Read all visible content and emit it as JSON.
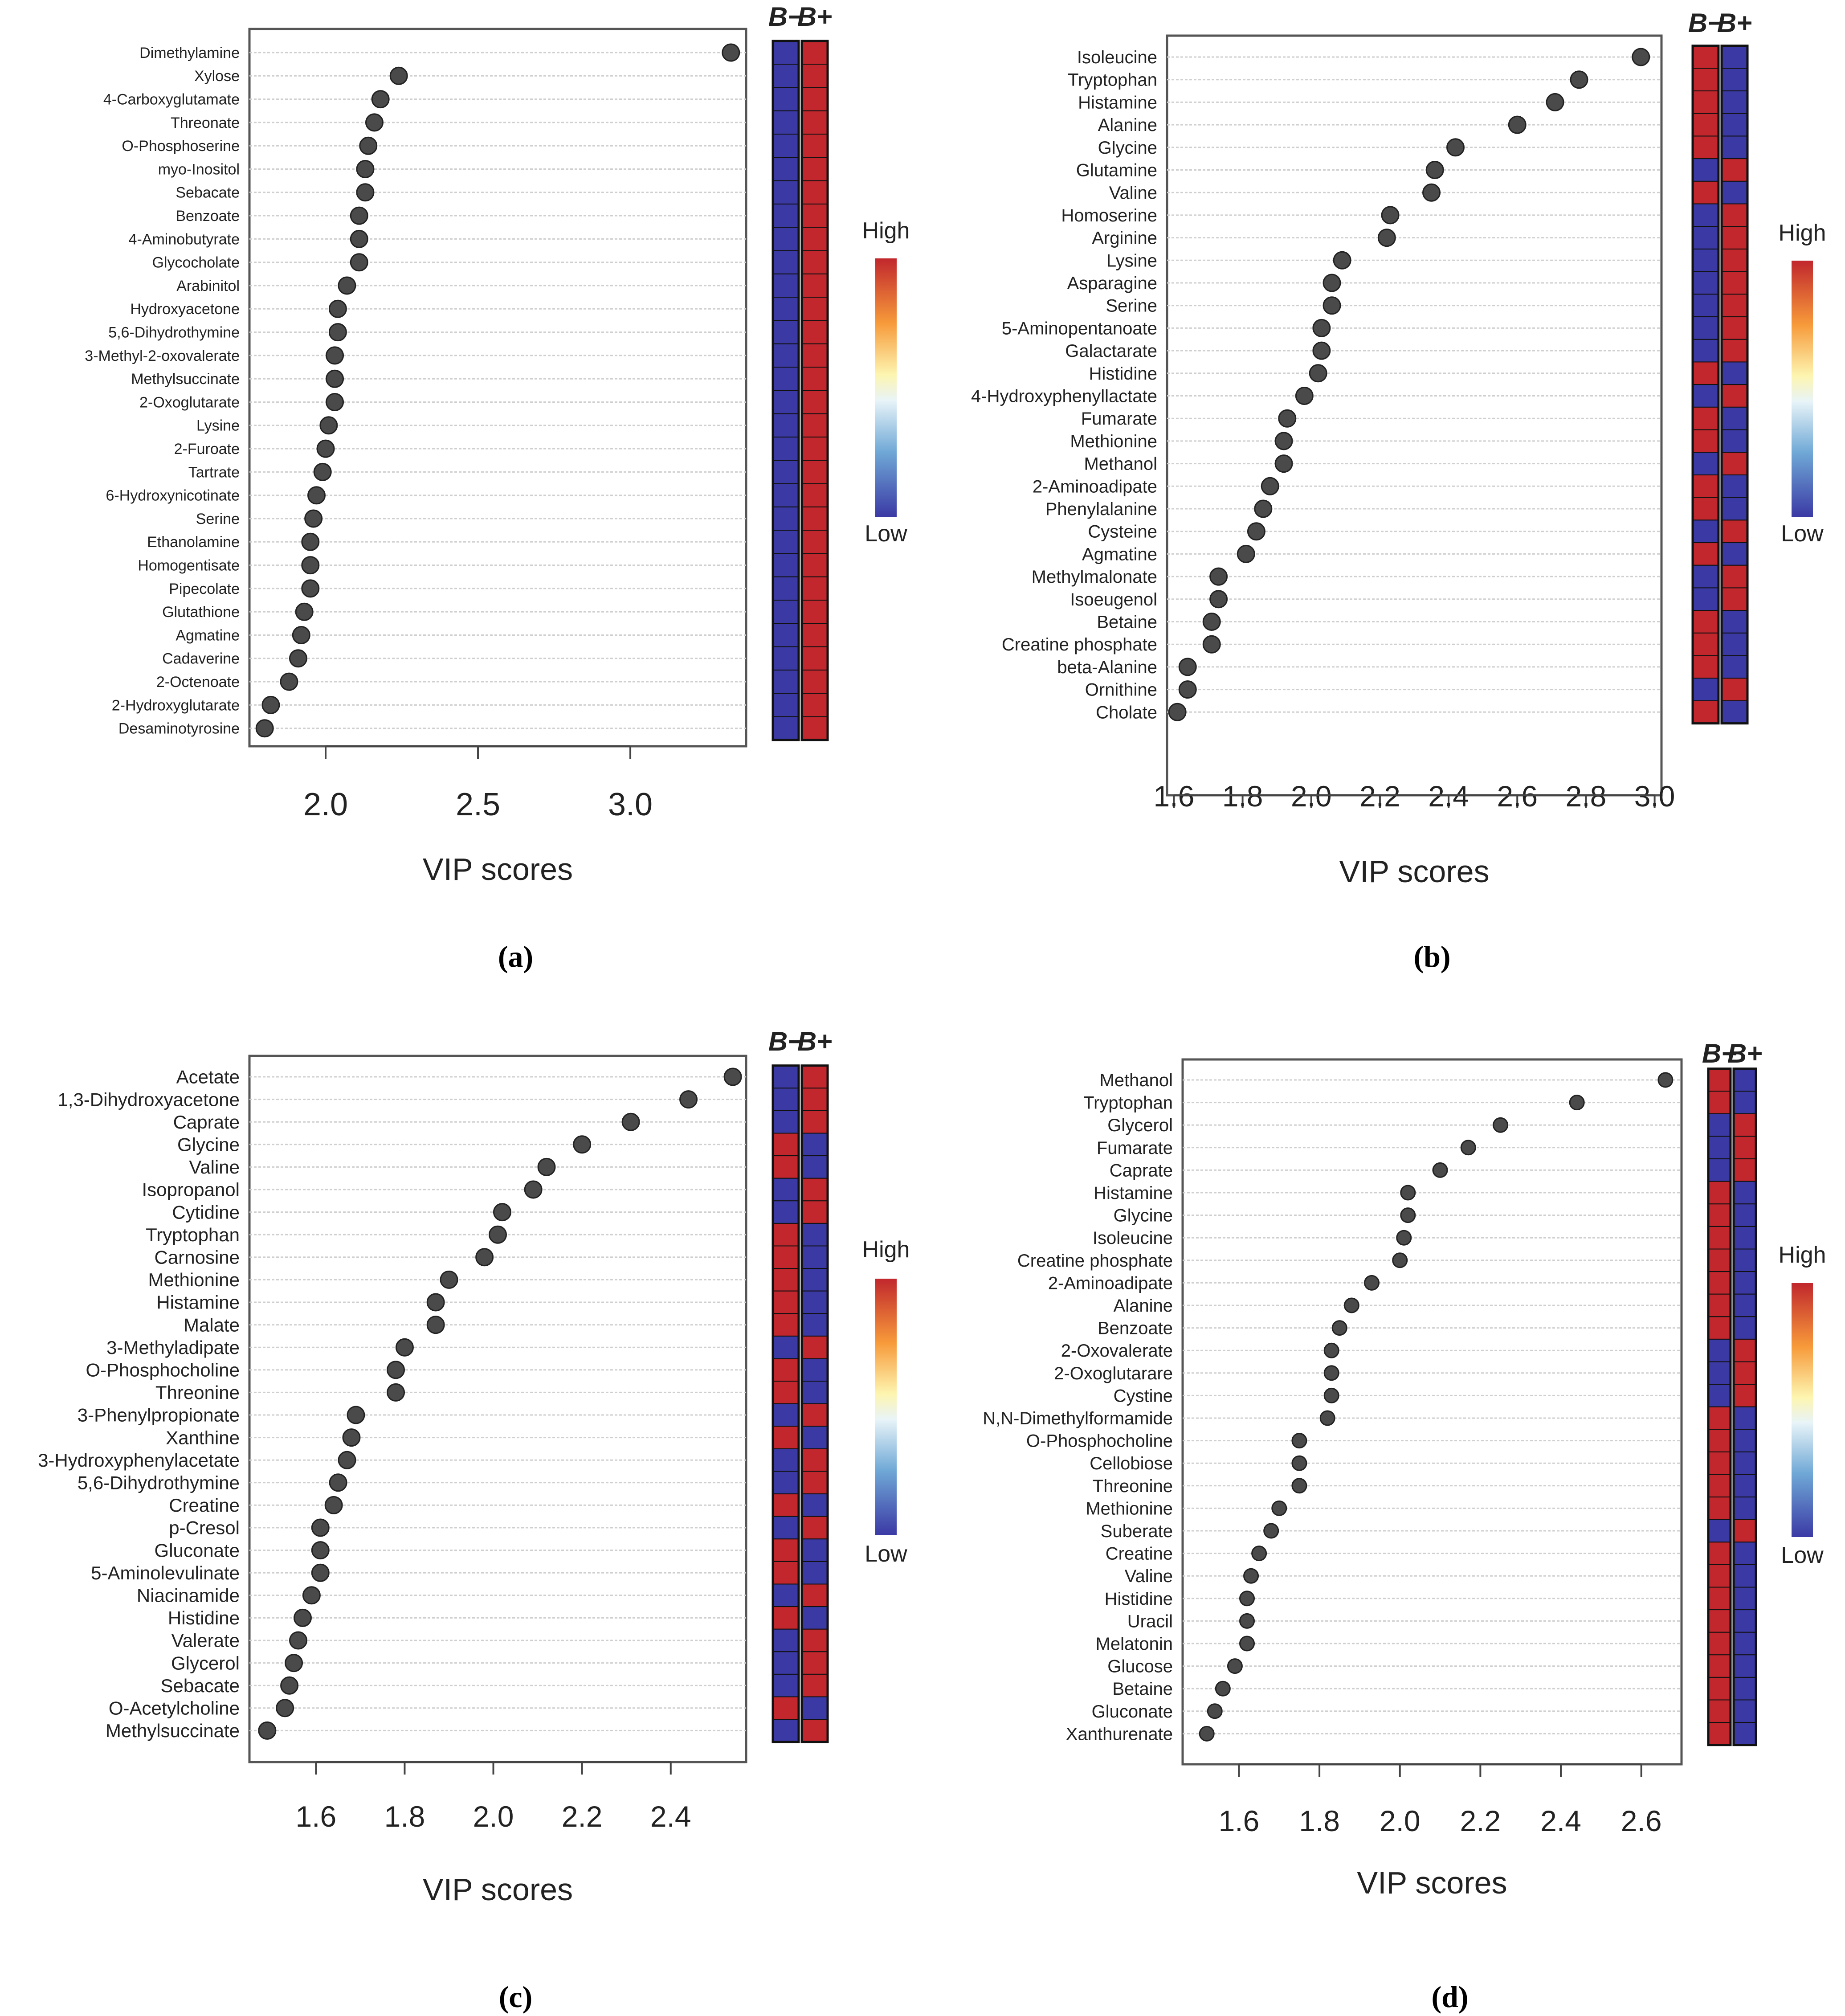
{
  "figure": {
    "legend": {
      "high": "High",
      "low": "Low"
    },
    "group_labels": [
      "B−",
      "B+"
    ],
    "colors": {
      "high": "#c1272d",
      "low": "#3b3aa5",
      "dot": "#4a4a4a"
    }
  },
  "chart_data": [
    {
      "type": "scatter",
      "panel": "(a)",
      "xlabel": "VIP scores",
      "xlim": [
        1.75,
        3.38
      ],
      "xticks": [
        2.0,
        2.5,
        3.0
      ],
      "tick_labels": [
        "2.0",
        "2.5",
        "3.0"
      ],
      "metabolites": [
        "Dimethylamine",
        "Xylose",
        "4-Carboxyglutamate",
        "Threonate",
        "O-Phosphoserine",
        "myo-Inositol",
        "Sebacate",
        "Benzoate",
        "4-Aminobutyrate",
        "Glycocholate",
        "Arabinitol",
        "Hydroxyacetone",
        "5,6-Dihydrothymine",
        "3-Methyl-2-oxovalerate",
        "Methylsuccinate",
        "2-Oxoglutarate",
        "Lysine",
        "2-Furoate",
        "Tartrate",
        "6-Hydroxynicotinate",
        "Serine",
        "Ethanolamine",
        "Homogentisate",
        "Pipecolate",
        "Glutathione",
        "Agmatine",
        "Cadaverine",
        "2-Octenoate",
        "2-Hydroxyglutarate",
        "Desaminotyrosine"
      ],
      "vip": [
        3.33,
        2.24,
        2.18,
        2.16,
        2.14,
        2.13,
        2.13,
        2.11,
        2.11,
        2.11,
        2.07,
        2.04,
        2.04,
        2.03,
        2.03,
        2.03,
        2.01,
        2.0,
        1.99,
        1.97,
        1.96,
        1.95,
        1.95,
        1.95,
        1.93,
        1.92,
        1.91,
        1.88,
        1.82,
        1.8
      ],
      "B_minus": [
        "low",
        "low",
        "low",
        "low",
        "low",
        "low",
        "low",
        "low",
        "low",
        "low",
        "low",
        "low",
        "low",
        "low",
        "low",
        "low",
        "low",
        "low",
        "low",
        "low",
        "low",
        "low",
        "low",
        "low",
        "low",
        "low",
        "low",
        "low",
        "low",
        "low"
      ],
      "B_plus": [
        "high",
        "high",
        "high",
        "high",
        "high",
        "high",
        "high",
        "high",
        "high",
        "high",
        "high",
        "high",
        "high",
        "high",
        "high",
        "high",
        "high",
        "high",
        "high",
        "high",
        "high",
        "high",
        "high",
        "high",
        "high",
        "high",
        "high",
        "high",
        "high",
        "high"
      ]
    },
    {
      "type": "scatter",
      "panel": "(b)",
      "xlabel": "VIP scores",
      "xlim": [
        1.58,
        3.02
      ],
      "xticks": [
        1.6,
        1.8,
        2.0,
        2.2,
        2.4,
        2.6,
        2.8,
        3.0
      ],
      "tick_labels": [
        "1.6",
        "1.8",
        "2.0",
        "2.2",
        "2.4",
        "2.6",
        "2.8",
        "3.0"
      ],
      "metabolites": [
        "Isoleucine",
        "Tryptophan",
        "Histamine",
        "Alanine",
        "Glycine",
        "Glutamine",
        "Valine",
        "Homoserine",
        "Arginine",
        "Lysine",
        "Asparagine",
        "Serine",
        "5-Aminopentanoate",
        "Galactarate",
        "Histidine",
        "4-Hydroxyphenyllactate",
        "Fumarate",
        "Methionine",
        "Methanol",
        "2-Aminoadipate",
        "Phenylalanine",
        "Cysteine",
        "Agmatine",
        "Methylmalonate",
        "Isoeugenol",
        "Betaine",
        "Creatine phosphate",
        "beta-Alanine",
        "Ornithine",
        "Cholate"
      ],
      "vip": [
        2.96,
        2.78,
        2.71,
        2.6,
        2.42,
        2.36,
        2.35,
        2.23,
        2.22,
        2.09,
        2.06,
        2.06,
        2.03,
        2.03,
        2.02,
        1.98,
        1.93,
        1.92,
        1.92,
        1.88,
        1.86,
        1.84,
        1.81,
        1.73,
        1.73,
        1.71,
        1.71,
        1.64,
        1.64,
        1.61
      ],
      "B_minus": [
        "high",
        "high",
        "high",
        "high",
        "high",
        "low",
        "high",
        "low",
        "low",
        "low",
        "low",
        "low",
        "low",
        "low",
        "high",
        "low",
        "high",
        "high",
        "low",
        "high",
        "high",
        "low",
        "high",
        "low",
        "low",
        "high",
        "high",
        "high",
        "low",
        "high"
      ],
      "B_plus": [
        "low",
        "low",
        "low",
        "low",
        "low",
        "high",
        "low",
        "high",
        "high",
        "high",
        "high",
        "high",
        "high",
        "high",
        "low",
        "high",
        "low",
        "low",
        "high",
        "low",
        "low",
        "high",
        "low",
        "high",
        "high",
        "low",
        "low",
        "low",
        "high",
        "low"
      ]
    },
    {
      "type": "scatter",
      "panel": "(c)",
      "xlabel": "VIP scores",
      "xlim": [
        1.45,
        2.57
      ],
      "xticks": [
        1.6,
        1.8,
        2.0,
        2.2,
        2.4
      ],
      "tick_labels": [
        "1.6",
        "1.8",
        "2.0",
        "2.2",
        "2.4"
      ],
      "metabolites": [
        "Acetate",
        "1,3-Dihydroxyacetone",
        "Caprate",
        "Glycine",
        "Valine",
        "Isopropanol",
        "Cytidine",
        "Tryptophan",
        "Carnosine",
        "Methionine",
        "Histamine",
        "Malate",
        "3-Methyladipate",
        "O-Phosphocholine",
        "Threonine",
        "3-Phenylpropionate",
        "Xanthine",
        "3-Hydroxyphenylacetate",
        "5,6-Dihydrothymine",
        "Creatine",
        "p-Cresol",
        "Gluconate",
        "5-Aminolevulinate",
        "Niacinamide",
        "Histidine",
        "Valerate",
        "Glycerol",
        "Sebacate",
        "O-Acetylcholine",
        "Methylsuccinate"
      ],
      "vip": [
        2.54,
        2.44,
        2.31,
        2.2,
        2.12,
        2.09,
        2.02,
        2.01,
        1.98,
        1.9,
        1.87,
        1.87,
        1.8,
        1.78,
        1.78,
        1.69,
        1.68,
        1.67,
        1.65,
        1.64,
        1.61,
        1.61,
        1.61,
        1.59,
        1.57,
        1.56,
        1.55,
        1.54,
        1.53,
        1.49
      ],
      "B_minus": [
        "low",
        "low",
        "low",
        "high",
        "high",
        "low",
        "low",
        "high",
        "high",
        "high",
        "high",
        "high",
        "low",
        "high",
        "high",
        "low",
        "high",
        "low",
        "low",
        "high",
        "low",
        "high",
        "high",
        "low",
        "high",
        "low",
        "low",
        "low",
        "high",
        "low"
      ],
      "B_plus": [
        "high",
        "high",
        "high",
        "low",
        "low",
        "high",
        "high",
        "low",
        "low",
        "low",
        "low",
        "low",
        "high",
        "low",
        "low",
        "high",
        "low",
        "high",
        "high",
        "low",
        "high",
        "low",
        "low",
        "high",
        "low",
        "high",
        "high",
        "high",
        "low",
        "high"
      ]
    },
    {
      "type": "scatter",
      "panel": "(d)",
      "xlabel": "VIP scores",
      "xlim": [
        1.46,
        2.7
      ],
      "xticks": [
        1.6,
        1.8,
        2.0,
        2.2,
        2.4,
        2.6
      ],
      "tick_labels": [
        "1.6",
        "1.8",
        "2.0",
        "2.2",
        "2.4",
        "2.6"
      ],
      "metabolites": [
        "Methanol",
        "Tryptophan",
        "Glycerol",
        "Fumarate",
        "Caprate",
        "Histamine",
        "Glycine",
        "Isoleucine",
        "Creatine phosphate",
        "2-Aminoadipate",
        "Alanine",
        "Benzoate",
        "2-Oxovalerate",
        "2-Oxoglutarare",
        "Cystine",
        "N,N-Dimethylformamide",
        "O-Phosphocholine",
        "Cellobiose",
        "Threonine",
        "Methionine",
        "Suberate",
        "Creatine",
        "Valine",
        "Histidine",
        "Uracil",
        "Melatonin",
        "Glucose",
        "Betaine",
        "Gluconate",
        "Xanthurenate"
      ],
      "vip": [
        2.66,
        2.44,
        2.25,
        2.17,
        2.1,
        2.02,
        2.02,
        2.01,
        2.0,
        1.93,
        1.88,
        1.85,
        1.83,
        1.83,
        1.83,
        1.82,
        1.75,
        1.75,
        1.75,
        1.7,
        1.68,
        1.65,
        1.63,
        1.62,
        1.62,
        1.62,
        1.59,
        1.56,
        1.54,
        1.52
      ],
      "B_minus": [
        "high",
        "high",
        "low",
        "low",
        "low",
        "high",
        "high",
        "high",
        "high",
        "high",
        "high",
        "high",
        "low",
        "low",
        "low",
        "high",
        "high",
        "high",
        "high",
        "high",
        "low",
        "high",
        "high",
        "high",
        "high",
        "high",
        "high",
        "high",
        "high",
        "high"
      ],
      "B_plus": [
        "low",
        "low",
        "high",
        "high",
        "high",
        "low",
        "low",
        "low",
        "low",
        "low",
        "low",
        "low",
        "high",
        "high",
        "high",
        "low",
        "low",
        "low",
        "low",
        "low",
        "high",
        "low",
        "low",
        "low",
        "low",
        "low",
        "low",
        "low",
        "low",
        "low"
      ]
    }
  ]
}
